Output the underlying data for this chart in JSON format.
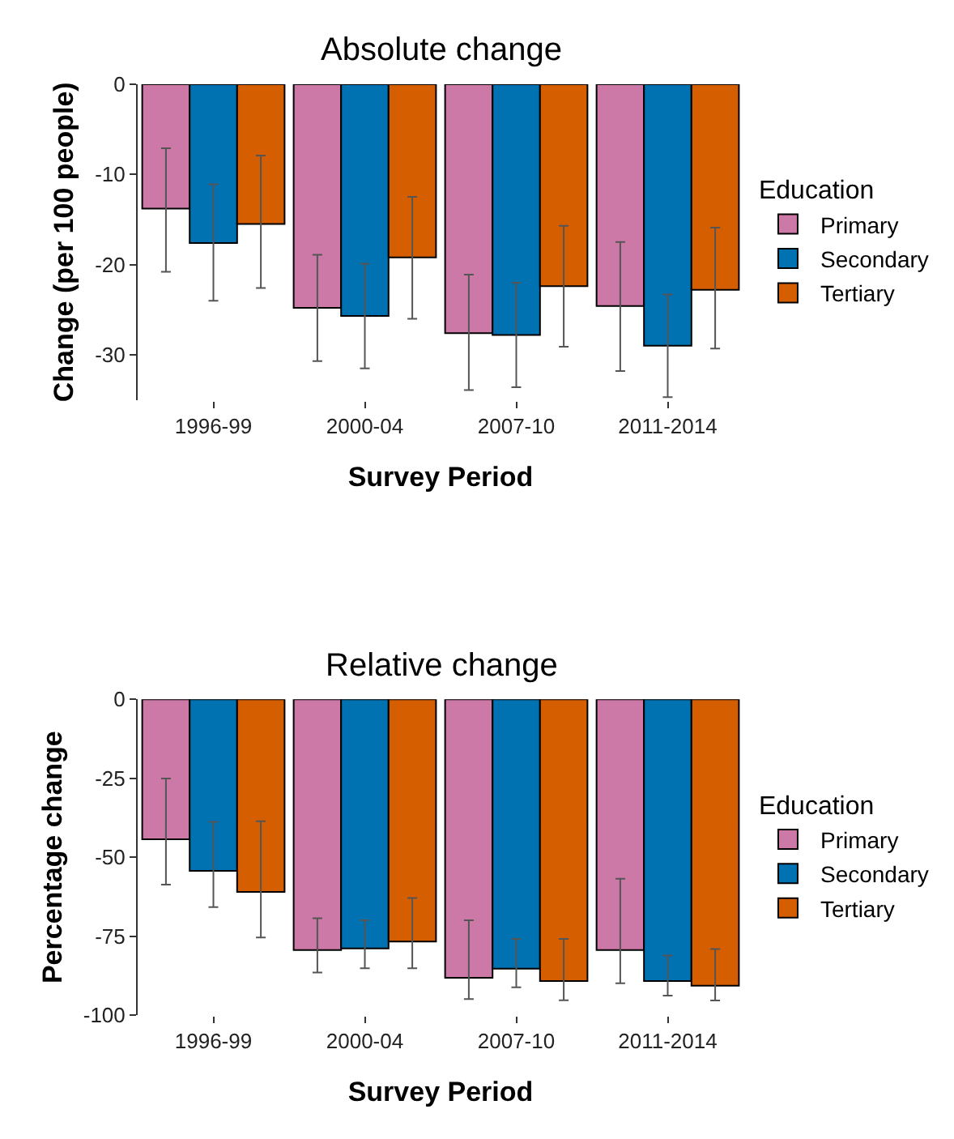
{
  "chart_data": [
    {
      "type": "bar",
      "title": "Absolute change",
      "xlabel": "Survey Period",
      "ylabel": "Change (per 100 people)",
      "legend_title": "Education",
      "legend": "right",
      "categories": [
        "1996-99",
        "2000-04",
        "2007-10",
        "2011-2014"
      ],
      "ylim": [
        -35,
        0
      ],
      "yticks": [
        0,
        -10,
        -20,
        -30
      ],
      "series": [
        {
          "name": "Primary",
          "color": "#cc79a7",
          "values": [
            -13.8,
            -24.8,
            -27.6,
            -24.6
          ],
          "errors": [
            [
              -20.8,
              -7.1
            ],
            [
              -30.7,
              -18.9
            ],
            [
              -33.9,
              -21.1
            ],
            [
              -31.8,
              -17.5
            ]
          ]
        },
        {
          "name": "Secondary",
          "color": "#0072b2",
          "values": [
            -17.6,
            -25.7,
            -27.8,
            -29.0
          ],
          "errors": [
            [
              -24.0,
              -11.1
            ],
            [
              -31.5,
              -19.9
            ],
            [
              -33.6,
              -22.0
            ],
            [
              -34.7,
              -23.3
            ]
          ]
        },
        {
          "name": "Tertiary",
          "color": "#d55e00",
          "values": [
            -15.5,
            -19.2,
            -22.4,
            -22.8
          ],
          "errors": [
            [
              -22.6,
              -7.9
            ],
            [
              -26.0,
              -12.5
            ],
            [
              -29.1,
              -15.7
            ],
            [
              -29.3,
              -15.9
            ]
          ]
        }
      ]
    },
    {
      "type": "bar",
      "title": "Relative change",
      "xlabel": "Survey Period",
      "ylabel": "Percentage change",
      "legend_title": "Education",
      "legend": "right",
      "categories": [
        "1996-99",
        "2000-04",
        "2007-10",
        "2011-2014"
      ],
      "ylim": [
        -100,
        0
      ],
      "yticks": [
        0,
        -25,
        -50,
        -75,
        -100
      ],
      "series": [
        {
          "name": "Primary",
          "color": "#cc79a7",
          "values": [
            -44.3,
            -79.4,
            -88.2,
            -79.4
          ],
          "errors": [
            [
              -58.7,
              -25.1
            ],
            [
              -86.5,
              -69.3
            ],
            [
              -94.9,
              -70.0
            ],
            [
              -89.9,
              -56.8
            ]
          ]
        },
        {
          "name": "Secondary",
          "color": "#0072b2",
          "values": [
            -54.3,
            -78.9,
            -85.3,
            -89.2
          ],
          "errors": [
            [
              -65.8,
              -38.8
            ],
            [
              -85.2,
              -70.0
            ],
            [
              -91.2,
              -75.9
            ],
            [
              -93.8,
              -81.1
            ]
          ]
        },
        {
          "name": "Tertiary",
          "color": "#d55e00",
          "values": [
            -61.0,
            -76.7,
            -89.2,
            -90.7
          ],
          "errors": [
            [
              -75.4,
              -38.6
            ],
            [
              -85.2,
              -62.9
            ],
            [
              -95.3,
              -75.9
            ],
            [
              -95.4,
              -79.1
            ]
          ]
        }
      ]
    }
  ]
}
